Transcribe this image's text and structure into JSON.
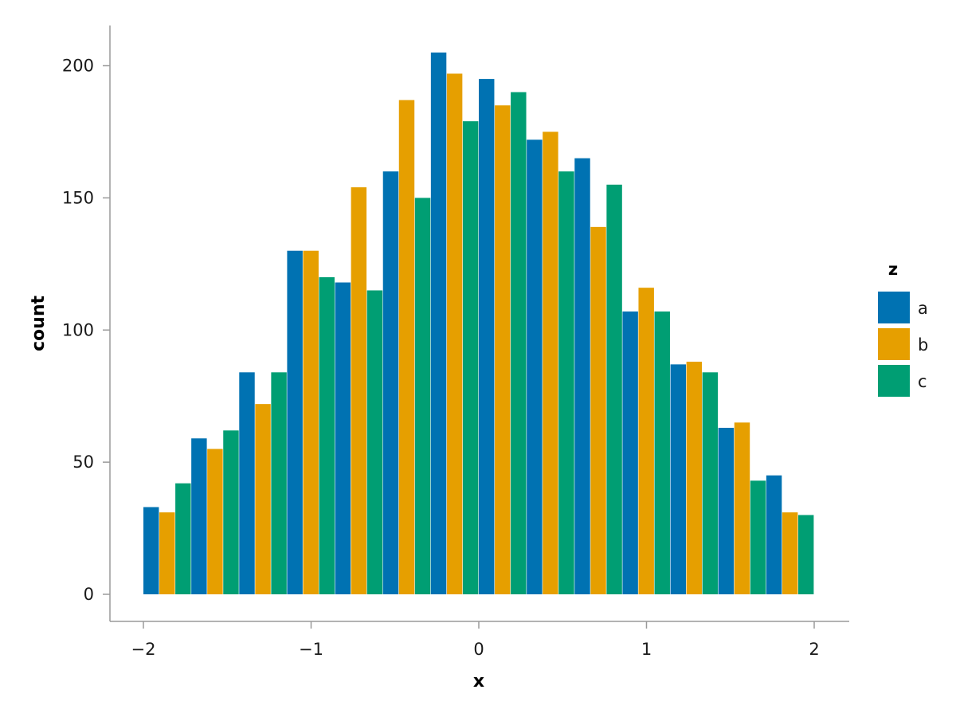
{
  "chart_data": {
    "type": "bar",
    "xlabel": "x",
    "ylabel": "count",
    "xlim": [
      -2.1,
      2.2
    ],
    "ylim": [
      -10,
      215
    ],
    "x_ticks": [
      -2,
      -1,
      0,
      1,
      2
    ],
    "x_tick_labels": [
      "−2",
      "−1",
      "0",
      "1",
      "2"
    ],
    "y_ticks": [
      0,
      50,
      100,
      150,
      200
    ],
    "y_tick_labels": [
      "0",
      "50",
      "100",
      "150",
      "200"
    ],
    "bin_width": 0.2857,
    "bin_starts": [
      -2.0,
      -1.7143,
      -1.4286,
      -1.1429,
      -0.8571,
      -0.5714,
      -0.2857,
      0.0,
      0.2857,
      0.5714,
      0.8571,
      1.1429,
      1.4286,
      1.7143
    ],
    "grid": false,
    "legend": {
      "title": "z",
      "position": "right"
    },
    "series": [
      {
        "name": "a",
        "color": "#0072b2",
        "values": [
          33,
          59,
          84,
          130,
          118,
          160,
          205,
          195,
          172,
          165,
          107,
          87,
          63,
          45
        ]
      },
      {
        "name": "b",
        "color": "#e69f00",
        "values": [
          31,
          55,
          72,
          130,
          154,
          187,
          197,
          185,
          175,
          139,
          116,
          88,
          65,
          31
        ]
      },
      {
        "name": "c",
        "color": "#009e73",
        "values": [
          42,
          62,
          84,
          120,
          115,
          150,
          179,
          190,
          160,
          155,
          107,
          84,
          43,
          30
        ]
      }
    ]
  }
}
